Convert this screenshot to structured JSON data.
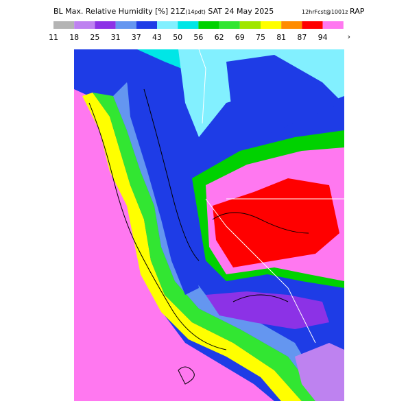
{
  "header": {
    "title_main": "BL Max. Relative Humidity [%] 21Z",
    "title_local": "(14pdt)",
    "title_date": "SAT 24 May 2025",
    "forecast": "12hrFcst@1001z",
    "model": "RAP"
  },
  "legend": {
    "colors": [
      "#b4b4b4",
      "#be82f0",
      "#8c32e6",
      "#6496f0",
      "#1e3ce6",
      "#82f0ff",
      "#00e6e6",
      "#00d200",
      "#32e632",
      "#a0e600",
      "#ffff00",
      "#ff8c00",
      "#ff0000",
      "#ff78f0"
    ],
    "labels": [
      11,
      18,
      25,
      31,
      37,
      43,
      50,
      56,
      62,
      69,
      75,
      81,
      87,
      94
    ],
    "overflow_label": "›"
  }
}
